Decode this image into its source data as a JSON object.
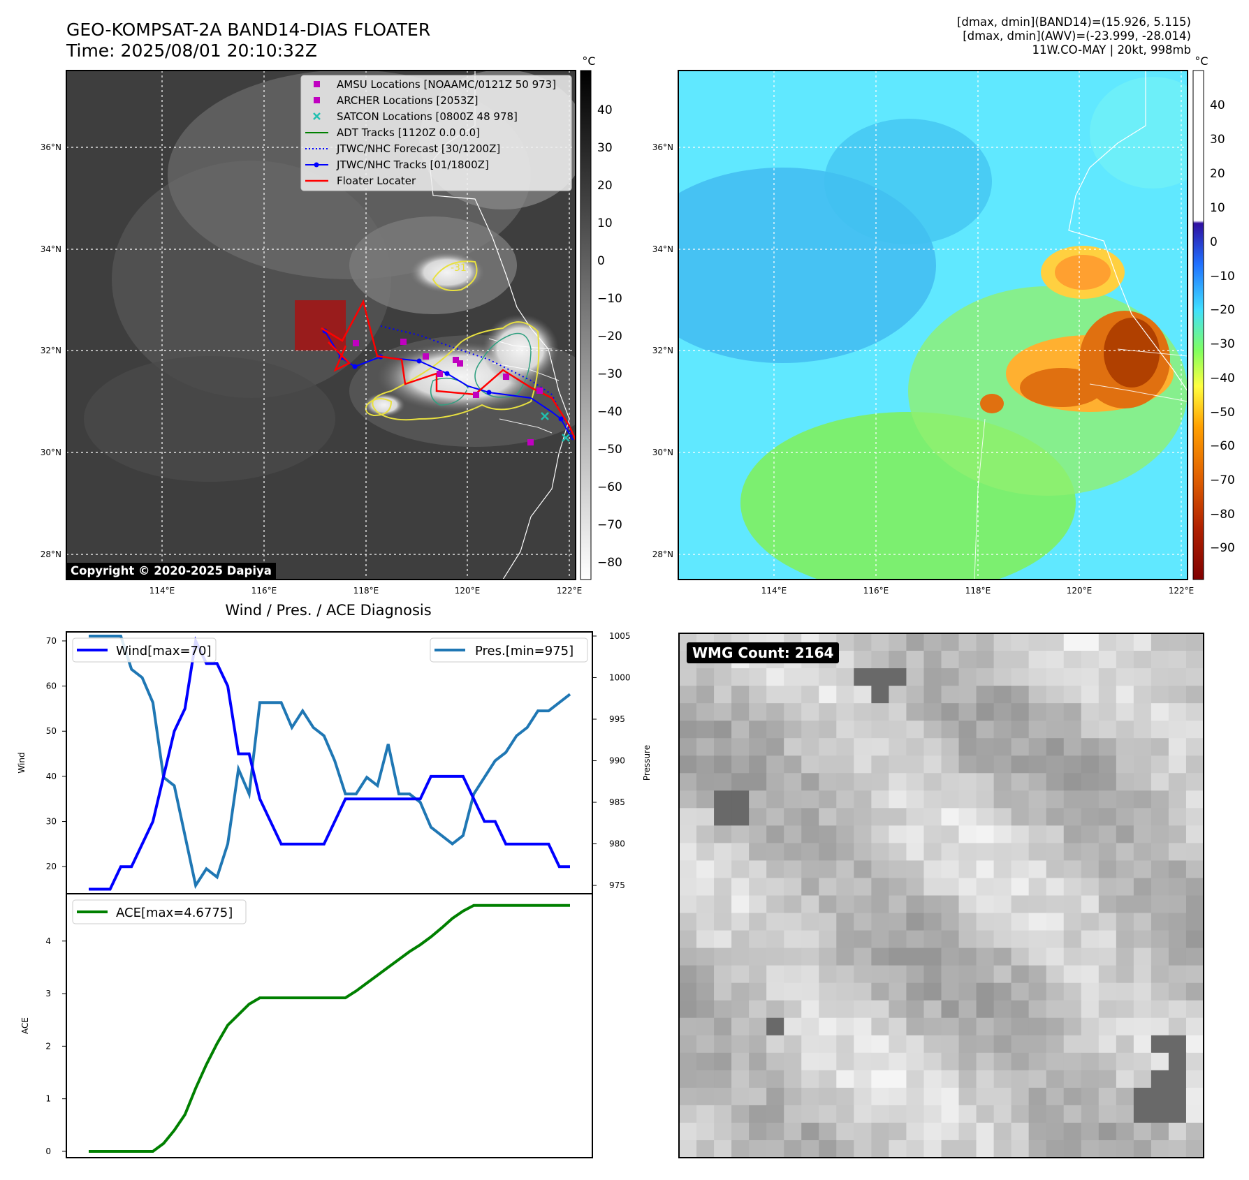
{
  "header": {
    "title_line1": "GEO-KOMPSAT-2A BAND14-DIAS FLOATER",
    "title_line2": "Time: 2025/08/01 20:10:32Z",
    "info_line1": "[dmax, dmin](BAND14)=(15.926, 5.115)",
    "info_line2": "[dmax, dmin](AWV)=(-23.999, -28.014)",
    "info_line3": "11W.CO-MAY | 20kt, 998mb"
  },
  "map": {
    "lat_labels": [
      "36°N",
      "34°N",
      "32°N",
      "30°N",
      "28°N"
    ],
    "lon_labels": [
      "114°E",
      "116°E",
      "118°E",
      "120°E",
      "122°E"
    ],
    "copyright": "Copyright © 2020-2025 Dapiya",
    "legend": [
      {
        "label": "AMSU Locations [NOAAMC/0121Z 50 973]",
        "symbol": "square",
        "color": "#c000c0"
      },
      {
        "label": "ARCHER Locations [2053Z]",
        "symbol": "square",
        "color": "#c000c0"
      },
      {
        "label": "SATCON Locations [0800Z 48 978]",
        "symbol": "x",
        "color": "#20c0b0"
      },
      {
        "label": "ADT Tracks [1120Z 0.0 0.0]",
        "symbol": "line",
        "color": "#008000"
      },
      {
        "label": "JTWC/NHC Forecast [30/1200Z]",
        "symbol": "dotted",
        "color": "#0000ff"
      },
      {
        "label": "JTWC/NHC Tracks [01/1800Z]",
        "symbol": "line-dot",
        "color": "#0000ff"
      },
      {
        "label": "Floater Locater",
        "symbol": "line",
        "color": "#ff0000"
      }
    ],
    "contour_label": "-31"
  },
  "colorbar_ir": {
    "unit": "°C",
    "ticks": [
      "40",
      "30",
      "20",
      "10",
      "0",
      "−10",
      "−20",
      "−30",
      "−40",
      "−50",
      "−60",
      "−70",
      "−80"
    ]
  },
  "colorbar_wv": {
    "unit": "°C",
    "ticks": [
      "40",
      "30",
      "20",
      "10",
      "0",
      "−10",
      "−20",
      "−30",
      "−40",
      "−50",
      "−60",
      "−70",
      "−80",
      "−90"
    ]
  },
  "panel_wmg": {
    "count_label": "WMG Count: 2164"
  },
  "chart_data": [
    {
      "type": "line",
      "title": "Wind / Pres. / ACE Diagnosis",
      "ylabel": "Wind",
      "y2label": "Pressure",
      "ylim": [
        14,
        72
      ],
      "y2lim": [
        974,
        1005.5
      ],
      "yticks": [
        "20",
        "30",
        "40",
        "50",
        "60",
        "70"
      ],
      "y2ticks": [
        "975",
        "980",
        "985",
        "990",
        "995",
        "1000",
        "1005"
      ],
      "series": [
        {
          "name": "Wind[max=70]",
          "color": "#0000ff",
          "values": [
            15,
            15,
            15,
            20,
            20,
            25,
            30,
            40,
            50,
            55,
            70,
            65,
            65,
            60,
            45,
            45,
            35,
            30,
            25,
            25,
            25,
            25,
            25,
            30,
            35,
            35,
            35,
            35,
            35,
            35,
            35,
            35,
            40,
            40,
            40,
            40,
            35,
            30,
            30,
            25,
            25,
            25,
            25,
            25,
            20,
            20
          ]
        },
        {
          "name": "Pres.[min=975]",
          "color": "#1f77b4",
          "values": [
            1005,
            1005,
            1005,
            1005,
            1001,
            1000,
            997,
            988,
            987,
            981,
            975,
            977,
            976,
            980,
            989,
            986,
            997,
            997,
            997,
            994,
            996,
            994,
            993,
            990,
            986,
            986,
            988,
            987,
            992,
            986,
            986,
            985,
            982,
            981,
            980,
            981,
            986,
            988,
            990,
            991,
            993,
            994,
            996,
            996,
            997,
            998
          ]
        }
      ]
    },
    {
      "type": "line",
      "ylabel": "ACE",
      "ylim": [
        -0.12,
        4.9
      ],
      "yticks": [
        "0",
        "1",
        "2",
        "3",
        "4"
      ],
      "series": [
        {
          "name": "ACE[max=4.6775]",
          "color": "#008000",
          "values": [
            0,
            0,
            0,
            0,
            0,
            0,
            0,
            0.15,
            0.4,
            0.7,
            1.2,
            1.65,
            2.05,
            2.4,
            2.6,
            2.8,
            2.92,
            2.92,
            2.92,
            2.92,
            2.92,
            2.92,
            2.92,
            2.92,
            2.92,
            3.05,
            3.2,
            3.35,
            3.5,
            3.65,
            3.8,
            3.93,
            4.08,
            4.25,
            4.43,
            4.57,
            4.6775,
            4.6775,
            4.6775,
            4.6775,
            4.6775,
            4.6775,
            4.6775,
            4.6775,
            4.6775,
            4.6775
          ]
        }
      ]
    }
  ]
}
